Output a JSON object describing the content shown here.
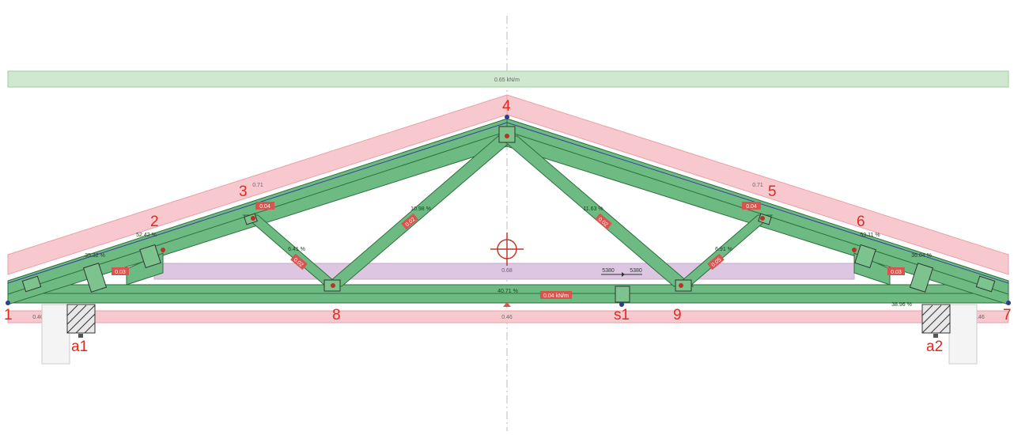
{
  "diagram": {
    "node_labels": [
      "1",
      "2",
      "3",
      "4",
      "5",
      "6",
      "7",
      "8",
      "9"
    ],
    "support_labels": [
      "a1",
      "a2",
      "s1"
    ],
    "top_load": "0.65 kN/m",
    "left_roof_load": "0.71",
    "right_roof_load": "0.71",
    "ceiling_load": "0.68",
    "bottom_chord_load": "0.04 kN/m",
    "bottom_band_left": "0.46",
    "bottom_band_mid": "0.46",
    "bottom_band_right": "0.46",
    "utilization": {
      "left_heel": "35.32 %",
      "left_top": "52.42 %",
      "left_web_outer": "6.41 %",
      "left_web_inner": "10.98 %",
      "right_web_inner": "11.63 %",
      "right_web_outer": "6.91 %",
      "right_top": "53.11 %",
      "right_heel": "36.04 %",
      "bottom_mid": "40.71 %",
      "bottom_right": "38.96 %"
    },
    "small_values": {
      "left_heel_plate": "0.03",
      "left_chord_3": "0.04",
      "left_web_outer": "0.02",
      "left_web_inner": "0.02",
      "right_web_inner": "0.02",
      "right_web_outer": "0.05",
      "right_chord_5": "0.04",
      "right_heel_plate": "0.03"
    },
    "splice_left": "5380",
    "splice_right": "5380",
    "colors": {
      "member_fill": "#6dbb82",
      "member_stroke": "#2e6e3d",
      "band_green": "#cfe8cf",
      "band_pink": "#f7c9cf",
      "band_purple": "#dcc6e2",
      "label_red": "#e02a20"
    }
  }
}
